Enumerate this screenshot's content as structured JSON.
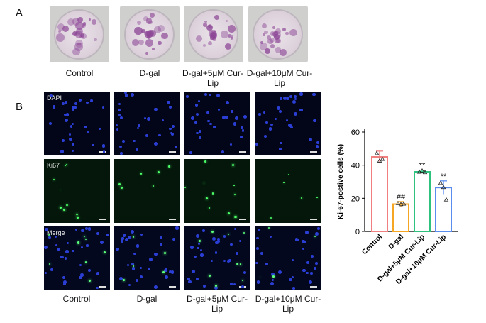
{
  "panel_a": {
    "letter": "A",
    "plates": [
      {
        "label": "Control"
      },
      {
        "label": "D-gal"
      },
      {
        "label": "D-gal+5μM Cur-Lip"
      },
      {
        "label": "D-gal+10μM Cur-Lip"
      }
    ]
  },
  "panel_b": {
    "letter": "B",
    "rows": [
      {
        "label": "DAPI"
      },
      {
        "label": "Ki67"
      },
      {
        "label": "Merge"
      }
    ],
    "columns": [
      {
        "label": "Control"
      },
      {
        "label": "D-gal"
      },
      {
        "label": "D-gal+5μM Cur-Lip"
      },
      {
        "label": "D-gal+10μM Cur-Lip"
      }
    ]
  },
  "chart_data": {
    "type": "bar",
    "ylabel": "Ki-67-postive cells (%)",
    "ylim": [
      0,
      60
    ],
    "yticks": [
      0,
      20,
      40,
      60
    ],
    "categories": [
      "Control",
      "D-gal",
      "D-gal+5μM Cur-Lip",
      "D-gal+10μM Cur-Lip"
    ],
    "values": [
      45,
      16.5,
      36,
      26.5
    ],
    "errors": [
      3.5,
      1.5,
      1,
      4
    ],
    "points": [
      [
        47,
        42.5,
        43.5
      ],
      [
        16.8,
        16.2,
        16.5
      ],
      [
        35.8,
        36.5,
        35.5
      ],
      [
        29,
        26.5,
        19
      ]
    ],
    "annotations": [
      "",
      "##",
      "**",
      "**"
    ],
    "colors": [
      "#f08080",
      "#f5a623",
      "#2ec27e",
      "#5b8def"
    ]
  }
}
